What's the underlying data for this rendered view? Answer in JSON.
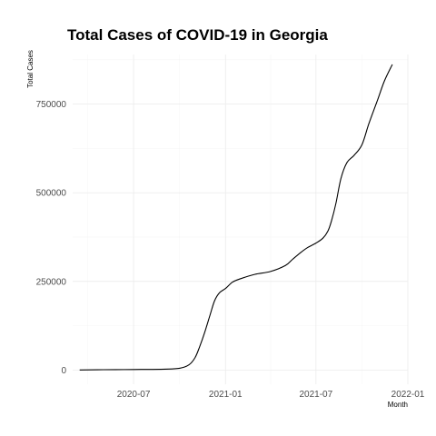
{
  "chart_data": {
    "type": "line",
    "title": "Total Cases of COVID-19 in Georgia",
    "xlabel": "Month",
    "ylabel": "Total Cases",
    "x_ticks": [
      "2020-07",
      "2021-01",
      "2021-07",
      "2022-01"
    ],
    "y_ticks": [
      "0",
      "250000",
      "500000",
      "750000"
    ],
    "xlim": [
      "2020-03-01",
      "2022-01-01"
    ],
    "ylim": [
      -40000,
      890000
    ],
    "grid": true,
    "series": [
      {
        "x": [
          "2020-03-15",
          "2020-05-01",
          "2020-07-01",
          "2020-09-01",
          "2020-10-01",
          "2020-10-20",
          "2020-11-01",
          "2020-11-10",
          "2020-11-20",
          "2020-12-01",
          "2020-12-10",
          "2020-12-20",
          "2021-01-01",
          "2021-01-15",
          "2021-02-01",
          "2021-03-01",
          "2021-04-01",
          "2021-05-01",
          "2021-05-15",
          "2021-06-01",
          "2021-06-15",
          "2021-07-01",
          "2021-07-15",
          "2021-07-25",
          "2021-08-01",
          "2021-08-10",
          "2021-08-20",
          "2021-09-01",
          "2021-09-15",
          "2021-10-01",
          "2021-10-15",
          "2021-11-01",
          "2021-11-15",
          "2021-12-01"
        ],
        "y": [
          100,
          1000,
          1500,
          2500,
          5000,
          15000,
          35000,
          65000,
          105000,
          155000,
          195000,
          218000,
          230000,
          248000,
          258000,
          270000,
          278000,
          295000,
          312000,
          332000,
          346000,
          358000,
          372000,
          392000,
          420000,
          470000,
          540000,
          585000,
          605000,
          635000,
          695000,
          760000,
          815000,
          862000
        ]
      }
    ]
  }
}
